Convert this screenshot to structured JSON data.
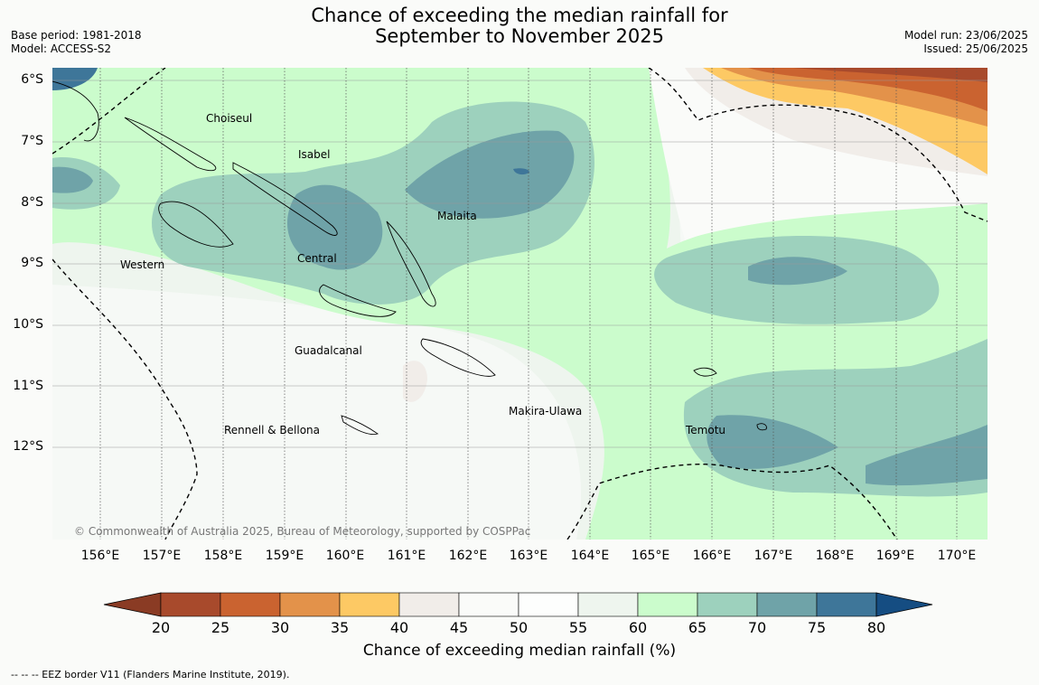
{
  "title": {
    "line1": "Chance of exceeding the median rainfall for",
    "line2": "September to November 2025"
  },
  "meta_left": {
    "base_period": "Base period: 1981-2018",
    "model": "Model: ACCESS-S2"
  },
  "meta_right": {
    "model_run": "Model run: 23/06/2025",
    "issued": "Issued: 25/06/2025"
  },
  "lat_labels": [
    "6°S",
    "7°S",
    "8°S",
    "9°S",
    "10°S",
    "11°S",
    "12°S"
  ],
  "lon_labels": [
    "156°E",
    "157°E",
    "158°E",
    "159°E",
    "160°E",
    "161°E",
    "162°E",
    "163°E",
    "164°E",
    "165°E",
    "166°E",
    "167°E",
    "168°E",
    "169°E",
    "170°E"
  ],
  "places": [
    "Choiseul",
    "Isabel",
    "Malaita",
    "Western",
    "Central",
    "Guadalcanal",
    "Makira-Ulawa",
    "Temotu",
    "Rennell & Bellona"
  ],
  "copyright": "© Commonwealth of Australia 2025, Bureau of Meteorology, supported by COSPPac",
  "colorbar": {
    "ticks": [
      "20",
      "25",
      "30",
      "35",
      "40",
      "45",
      "50",
      "55",
      "60",
      "65",
      "70",
      "75",
      "80"
    ],
    "colors": [
      "#a84a2c",
      "#ca6330",
      "#e3924a",
      "#fdc964",
      "#f1ede9",
      "#fafbf9",
      "#fdfefd",
      "#eef5ee",
      "#cbfccc",
      "#9dd1bd",
      "#6fa3a8",
      "#3e7699"
    ],
    "under_color": "#8a3b24",
    "over_color": "#154d82",
    "title": "Chance of exceeding median rainfall (%)"
  },
  "footnote": "--  --  -- EEZ border V11 (Flanders Marine Institute, 2019)."
}
